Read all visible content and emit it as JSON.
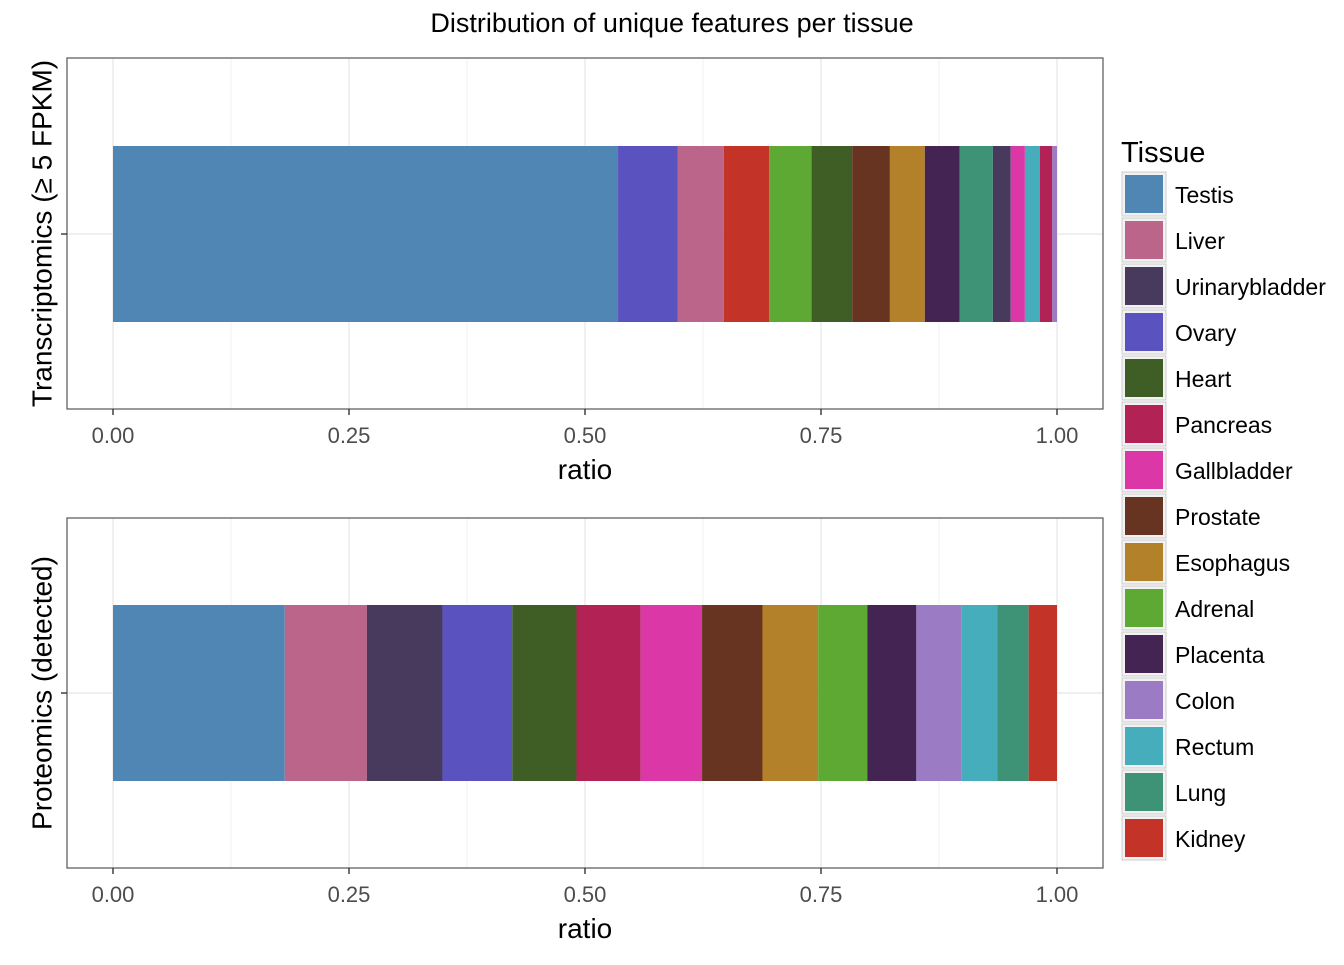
{
  "title": "Distribution of unique features per tissue",
  "legend": {
    "title": "Tissue",
    "items": [
      {
        "label": "Testis",
        "color": "#4f86b3"
      },
      {
        "label": "Liver",
        "color": "#bb658a"
      },
      {
        "label": "Urinarybladder",
        "color": "#483a5d"
      },
      {
        "label": "Ovary",
        "color": "#5a52be"
      },
      {
        "label": "Heart",
        "color": "#3f5e26"
      },
      {
        "label": "Pancreas",
        "color": "#b32254"
      },
      {
        "label": "Gallbladder",
        "color": "#dc37a7"
      },
      {
        "label": "Prostate",
        "color": "#663421"
      },
      {
        "label": "Esophagus",
        "color": "#b4812b"
      },
      {
        "label": "Adrenal",
        "color": "#5ea834"
      },
      {
        "label": "Placenta",
        "color": "#432453"
      },
      {
        "label": "Colon",
        "color": "#9a7bc4"
      },
      {
        "label": "Rectum",
        "color": "#46adbc"
      },
      {
        "label": "Lung",
        "color": "#3e9377"
      },
      {
        "label": "Kidney",
        "color": "#c33327"
      }
    ]
  },
  "chart_data": [
    {
      "type": "bar",
      "orientation": "horizontal-stacked",
      "ylabel": "Transcriptomics (≥ 5 FPKM)",
      "xlabel": "ratio",
      "xlim": [
        0,
        1
      ],
      "xticks": [
        "0.00",
        "0.25",
        "0.50",
        "0.75",
        "1.00"
      ],
      "grid": true,
      "legend": "right",
      "segments": [
        {
          "tissue": "Testis",
          "value": 0.535
        },
        {
          "tissue": "Ovary",
          "value": 0.063
        },
        {
          "tissue": "Liver",
          "value": 0.049
        },
        {
          "tissue": "Kidney",
          "value": 0.048
        },
        {
          "tissue": "Adrenal",
          "value": 0.045
        },
        {
          "tissue": "Heart",
          "value": 0.043
        },
        {
          "tissue": "Prostate",
          "value": 0.04
        },
        {
          "tissue": "Esophagus",
          "value": 0.037
        },
        {
          "tissue": "Placenta",
          "value": 0.037
        },
        {
          "tissue": "Lung",
          "value": 0.035
        },
        {
          "tissue": "Urinarybladder",
          "value": 0.019
        },
        {
          "tissue": "Gallbladder",
          "value": 0.015
        },
        {
          "tissue": "Rectum",
          "value": 0.016
        },
        {
          "tissue": "Pancreas",
          "value": 0.013
        },
        {
          "tissue": "Colon",
          "value": 0.005
        }
      ]
    },
    {
      "type": "bar",
      "orientation": "horizontal-stacked",
      "ylabel": "Proteomics (detected)",
      "xlabel": "ratio",
      "xlim": [
        0,
        1
      ],
      "xticks": [
        "0.00",
        "0.25",
        "0.50",
        "0.75",
        "1.00"
      ],
      "grid": true,
      "legend": "right",
      "segments": [
        {
          "tissue": "Testis",
          "value": 0.182
        },
        {
          "tissue": "Liver",
          "value": 0.087
        },
        {
          "tissue": "Urinarybladder",
          "value": 0.08
        },
        {
          "tissue": "Ovary",
          "value": 0.074
        },
        {
          "tissue": "Heart",
          "value": 0.068
        },
        {
          "tissue": "Pancreas",
          "value": 0.068
        },
        {
          "tissue": "Gallbladder",
          "value": 0.065
        },
        {
          "tissue": "Prostate",
          "value": 0.064
        },
        {
          "tissue": "Esophagus",
          "value": 0.059
        },
        {
          "tissue": "Adrenal",
          "value": 0.052
        },
        {
          "tissue": "Placenta",
          "value": 0.052
        },
        {
          "tissue": "Colon",
          "value": 0.048
        },
        {
          "tissue": "Rectum",
          "value": 0.038
        },
        {
          "tissue": "Lung",
          "value": 0.033
        },
        {
          "tissue": "Kidney",
          "value": 0.03
        }
      ]
    }
  ]
}
